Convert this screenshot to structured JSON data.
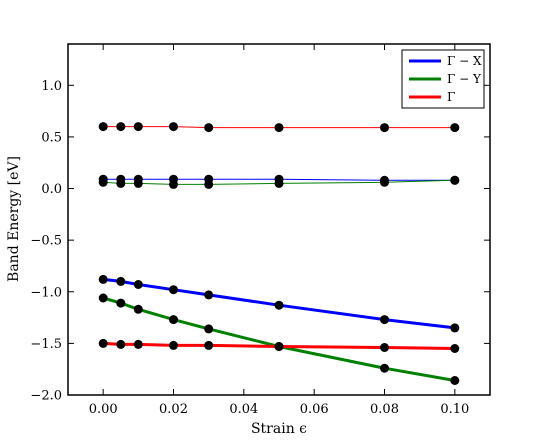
{
  "chart_data": {
    "type": "line",
    "title": "",
    "xlabel": "Strain ϵ",
    "ylabel": "Band Energy [eV]",
    "xlim": [
      -0.01,
      0.11
    ],
    "ylim": [
      -2.0,
      1.4
    ],
    "xticks": [
      0.0,
      0.02,
      0.04,
      0.06,
      0.08,
      0.1
    ],
    "xtick_labels": [
      "0.00",
      "0.02",
      "0.04",
      "0.06",
      "0.08",
      "0.10"
    ],
    "yticks": [
      -2.0,
      -1.5,
      -1.0,
      -0.5,
      0.0,
      0.5,
      1.0
    ],
    "ytick_labels": [
      "−2.0",
      "−1.5",
      "−1.0",
      "−0.5",
      "0.0",
      "0.5",
      "1.0"
    ],
    "grid": false,
    "legend": {
      "placement": "top-right",
      "entries": [
        "Γ − X",
        "Γ − Y",
        "Γ"
      ]
    },
    "x": [
      0.0,
      0.005,
      0.01,
      0.02,
      0.03,
      0.05,
      0.08,
      0.1
    ],
    "series": [
      {
        "name": "Γ − X",
        "color": "#0000ff",
        "values": [
          -0.88,
          -0.9,
          -0.93,
          -0.98,
          -1.03,
          -1.13,
          -1.27,
          -1.35
        ]
      },
      {
        "name": "Γ − Y",
        "color": "#008000",
        "values": [
          -1.06,
          -1.11,
          -1.17,
          -1.27,
          -1.36,
          -1.53,
          -1.74,
          -1.86
        ]
      },
      {
        "name": "Γ",
        "color": "#ff0000",
        "values": [
          -1.5,
          -1.51,
          -1.51,
          -1.52,
          -1.52,
          -1.53,
          -1.54,
          -1.55
        ]
      },
      {
        "name": "",
        "color": "#0000ff",
        "values": [
          0.09,
          0.09,
          0.09,
          0.09,
          0.09,
          0.09,
          0.08,
          0.08
        ]
      },
      {
        "name": "",
        "color": "#008000",
        "values": [
          0.06,
          0.05,
          0.05,
          0.04,
          0.04,
          0.05,
          0.06,
          0.08
        ]
      },
      {
        "name": "",
        "color": "#ff0000",
        "values": [
          0.6,
          0.6,
          0.6,
          0.6,
          0.59,
          0.59,
          0.59,
          0.59
        ]
      }
    ]
  }
}
